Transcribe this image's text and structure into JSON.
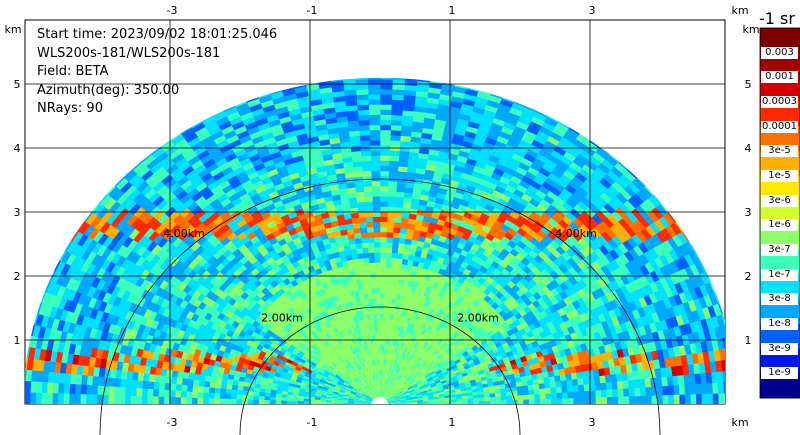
{
  "info": {
    "start_time": "Start time: 2023/09/02 18:01:25.046",
    "instrument": "WLS200s-181/WLS200s-181",
    "field": "Field: BETA",
    "azimuth": "Azimuth(deg): 350.00",
    "nrays": "NRays: 90"
  },
  "axes": {
    "x_unit": "km",
    "y_unit": "km",
    "x_ticks": [
      "-3",
      "-1",
      "1",
      "3"
    ],
    "y_ticks": [
      "1",
      "2",
      "3",
      "4",
      "5"
    ],
    "range_rings": [
      "2.00km",
      "4.00km"
    ]
  },
  "colorbar": {
    "title": "-1 sr",
    "labels": [
      "0.003",
      "0.001",
      "0.0003",
      "0.0001",
      "3e-5",
      "1e-5",
      "3e-6",
      "1e-6",
      "3e-7",
      "1e-7",
      "3e-8",
      "1e-8",
      "3e-9",
      "1e-9"
    ],
    "colors": [
      "#7f0000",
      "#a00000",
      "#d40000",
      "#ff2a00",
      "#ff7000",
      "#ffb000",
      "#ffe800",
      "#d6ff2e",
      "#8cff6a",
      "#3cffbc",
      "#00e0ff",
      "#00a8ff",
      "#0060ff",
      "#0018e8",
      "#00008f"
    ]
  },
  "chart_data": {
    "type": "heatmap",
    "x": {
      "unit": "km",
      "ticks": [
        -3,
        -1,
        1,
        3
      ],
      "range": [
        -5.0,
        5.0
      ]
    },
    "y": {
      "unit": "km",
      "ticks": [
        1,
        2,
        3,
        4,
        5
      ],
      "range": [
        0,
        5.3
      ]
    },
    "range_rings_km": [
      2.0,
      4.0
    ],
    "scan_extent_km": 5.1,
    "aerosol_layer": {
      "height_km": [
        2.6,
        3.0
      ],
      "beta_peak": "0.0001"
    },
    "near_ground_layer": {
      "height_km": [
        0.5,
        0.8
      ],
      "beta_peak": "0.0003"
    }
  }
}
